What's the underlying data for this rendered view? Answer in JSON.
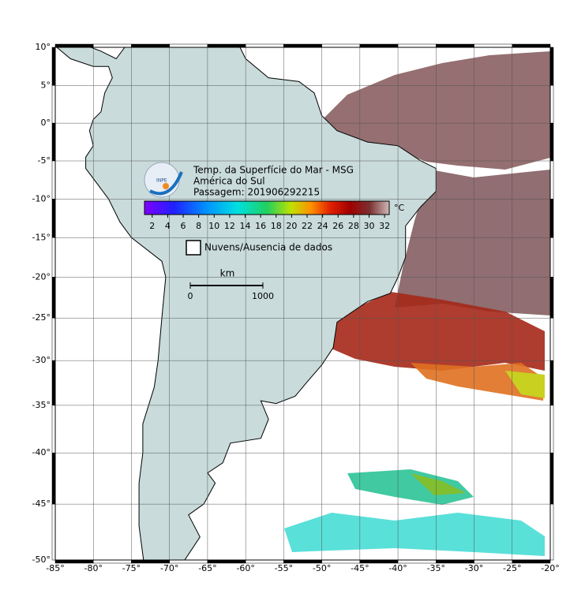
{
  "header": {
    "title": "Temp. da Superfície do Mar - MSG",
    "region": "América do Sul",
    "pass": "Passagem: 201906292215",
    "logo": "INPE"
  },
  "colorbar": {
    "unit": "°C",
    "lim": [
      1,
      32.6
    ],
    "ticks": [
      2,
      4,
      6,
      8,
      10,
      12,
      14,
      16,
      18,
      20,
      22,
      24,
      26,
      28,
      30,
      32
    ]
  },
  "legend": {
    "no_data": "Nuvens/Ausencia de dados"
  },
  "scale_bar": {
    "unit": "km",
    "lim": [
      0,
      1000
    ],
    "ticks": [
      0,
      1000
    ]
  },
  "map": {
    "lonlim": [
      -85,
      -20
    ],
    "latlim": [
      -50,
      10
    ],
    "lonticks": [
      {
        "value": -85,
        "label": "-85°"
      },
      {
        "value": -80,
        "label": "-80°"
      },
      {
        "value": -75,
        "label": "-75°"
      },
      {
        "value": -70,
        "label": "-70°"
      },
      {
        "value": -65,
        "label": "-65°"
      },
      {
        "value": -60,
        "label": "-60°"
      },
      {
        "value": -55,
        "label": "-55°"
      },
      {
        "value": -50,
        "label": "-50°"
      },
      {
        "value": -45,
        "label": "-45°"
      },
      {
        "value": -40,
        "label": "-40°"
      },
      {
        "value": -35,
        "label": "-35°"
      },
      {
        "value": -30,
        "label": "-30°"
      },
      {
        "value": -25,
        "label": "-25°"
      },
      {
        "value": -20,
        "label": "-20°"
      }
    ],
    "latticks": [
      {
        "value": 10,
        "label": "10°"
      },
      {
        "value": 5,
        "label": "5°"
      },
      {
        "value": 0,
        "label": "0°"
      },
      {
        "value": -5,
        "label": "-5°"
      },
      {
        "value": -10,
        "label": "-10°"
      },
      {
        "value": -15,
        "label": "-15°"
      },
      {
        "value": -20,
        "label": "-20°"
      },
      {
        "value": -25,
        "label": "-25°"
      },
      {
        "value": -30,
        "label": "-30°"
      },
      {
        "value": -35,
        "label": "-35°"
      },
      {
        "value": -40,
        "label": "-40°"
      },
      {
        "value": -45,
        "label": "-45°"
      },
      {
        "value": -50,
        "label": "-50°"
      }
    ]
  }
}
